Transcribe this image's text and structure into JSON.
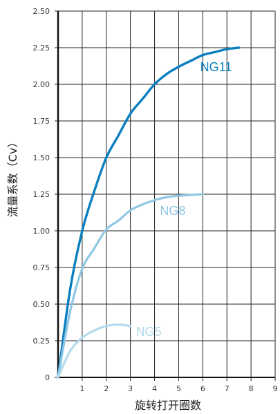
{
  "chart_data": {
    "type": "line",
    "xlabel": "旋转打开圈数",
    "ylabel": "流量系数（Cv）",
    "xlim": [
      0,
      9
    ],
    "ylim": [
      0,
      2.5
    ],
    "x_ticks": [
      "1",
      "2",
      "3",
      "4",
      "5",
      "6",
      "7",
      "8",
      "9"
    ],
    "y_ticks": [
      "0",
      "0.25",
      "0.50",
      "0.75",
      "1.00",
      "1.25",
      "1.50",
      "1.75",
      "2.00",
      "2.25",
      "2.50"
    ],
    "grid": true,
    "series": [
      {
        "name": "NG11",
        "color": "#0a7fc0",
        "x": [
          0,
          0.5,
          1,
          1.5,
          2,
          2.5,
          3,
          3.5,
          4,
          4.5,
          5,
          5.5,
          6,
          6.5,
          7,
          7.5
        ],
        "y": [
          0,
          0.6,
          1.0,
          1.27,
          1.5,
          1.65,
          1.8,
          1.9,
          2.0,
          2.07,
          2.12,
          2.16,
          2.2,
          2.22,
          2.24,
          2.25
        ]
      },
      {
        "name": "NG8",
        "color": "#8ec7e4",
        "x": [
          0,
          0.5,
          1,
          1.5,
          2,
          2.5,
          3,
          3.5,
          4,
          4.5,
          5,
          5.5,
          6
        ],
        "y": [
          0,
          0.45,
          0.74,
          0.88,
          1.01,
          1.07,
          1.14,
          1.18,
          1.21,
          1.23,
          1.24,
          1.245,
          1.25
        ]
      },
      {
        "name": "NG5",
        "color": "#b3daee",
        "x": [
          0,
          0.5,
          1,
          1.5,
          2,
          2.5,
          3
        ],
        "y": [
          0,
          0.18,
          0.27,
          0.32,
          0.35,
          0.36,
          0.35
        ]
      }
    ]
  }
}
